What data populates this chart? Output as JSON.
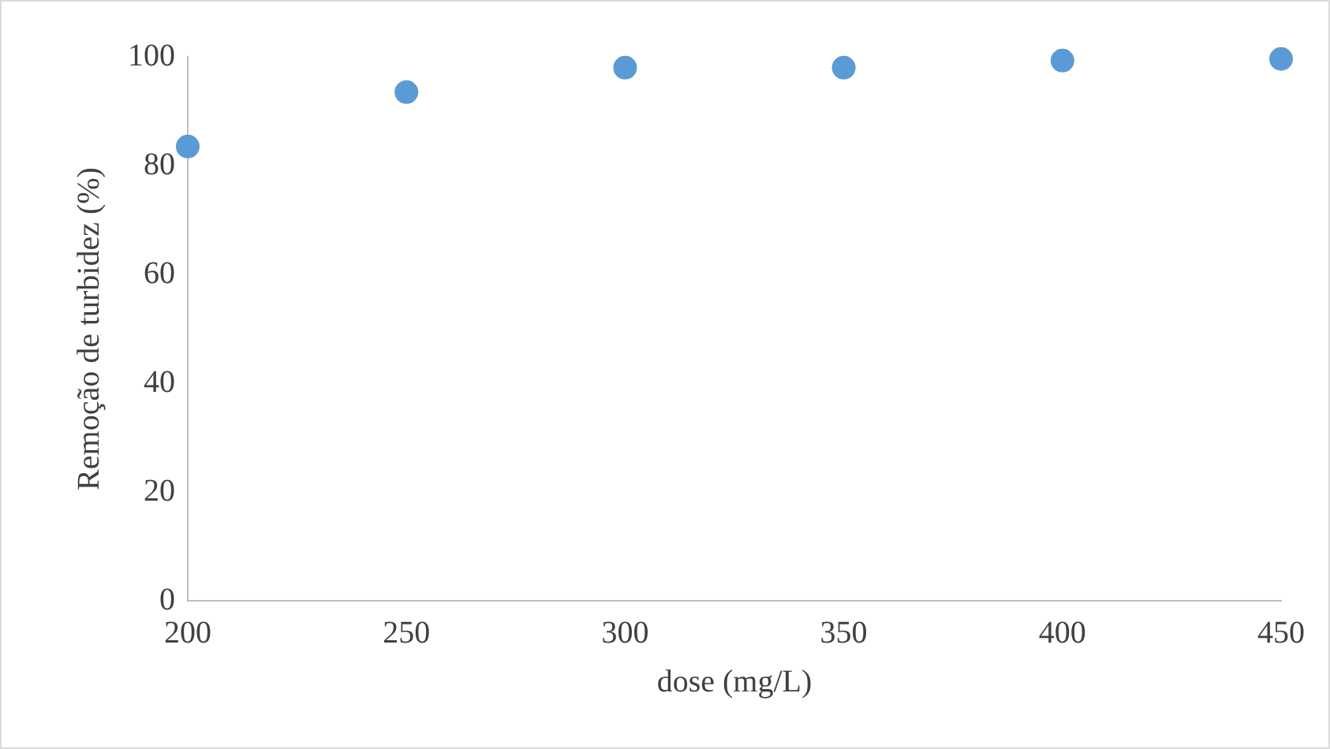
{
  "chart_data": {
    "type": "scatter",
    "xlabel": "dose (mg/L)",
    "ylabel": "Remoção de turbidez (%)",
    "x": [
      200,
      250,
      300,
      350,
      400,
      450
    ],
    "series": [
      {
        "color": "#5b9bd5",
        "values": [
          83.5,
          93.5,
          98,
          98,
          99.3,
          99.6
        ]
      }
    ],
    "xlim": [
      200,
      450
    ],
    "xticks": [
      200,
      250,
      300,
      350,
      400,
      450
    ],
    "ylim": [
      0,
      100
    ],
    "yticks": [
      0,
      20,
      40,
      60,
      80,
      100
    ],
    "marker": "circle"
  }
}
